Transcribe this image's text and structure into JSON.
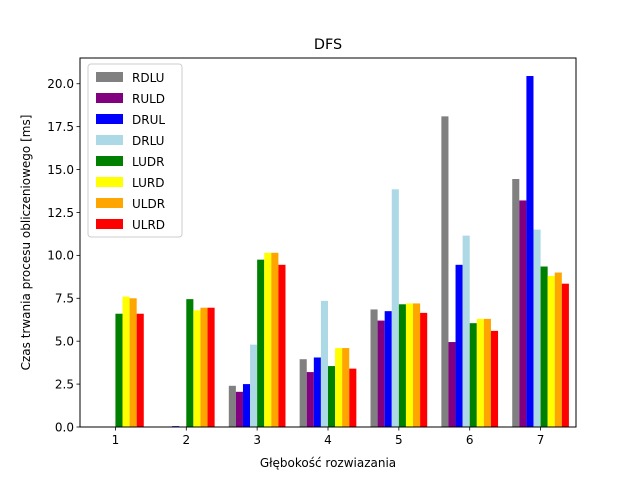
{
  "chart_data": {
    "type": "bar",
    "title": "DFS",
    "xlabel": "Głębokość rozwiazania",
    "ylabel": "Czas trwania procesu obliczeniowego [ms]",
    "categories": [
      "1",
      "2",
      "3",
      "4",
      "5",
      "6",
      "7"
    ],
    "ylim": [
      0,
      21.5
    ],
    "yticks": [
      "0.0",
      "2.5",
      "5.0",
      "7.5",
      "10.0",
      "12.5",
      "15.0",
      "17.5",
      "20.0"
    ],
    "legend_position": "upper-left",
    "grid": false,
    "series": [
      {
        "name": "RDLU",
        "color": "#808080",
        "values": [
          0,
          0.02,
          2.4,
          3.95,
          6.85,
          18.1,
          14.45
        ]
      },
      {
        "name": "RULD",
        "color": "#800080",
        "values": [
          0,
          0.02,
          2.05,
          3.2,
          6.2,
          4.95,
          13.2
        ]
      },
      {
        "name": "DRUL",
        "color": "#0000ff",
        "values": [
          0,
          0.05,
          2.5,
          4.05,
          6.75,
          9.45,
          20.45
        ]
      },
      {
        "name": "DRLU",
        "color": "#add8e6",
        "values": [
          0,
          0,
          4.8,
          7.35,
          13.85,
          11.15,
          11.5
        ]
      },
      {
        "name": "LUDR",
        "color": "#008000",
        "values": [
          6.6,
          7.45,
          9.75,
          3.55,
          7.15,
          6.05,
          9.35
        ]
      },
      {
        "name": "LURD",
        "color": "#ffff00",
        "values": [
          7.6,
          6.8,
          10.15,
          4.6,
          7.2,
          6.3,
          8.8
        ]
      },
      {
        "name": "ULDR",
        "color": "#ffa500",
        "values": [
          7.5,
          6.95,
          10.15,
          4.6,
          7.2,
          6.3,
          9.0
        ]
      },
      {
        "name": "ULRD",
        "color": "#ff0000",
        "values": [
          6.6,
          6.95,
          9.45,
          3.4,
          6.65,
          5.6,
          8.35
        ]
      }
    ]
  }
}
